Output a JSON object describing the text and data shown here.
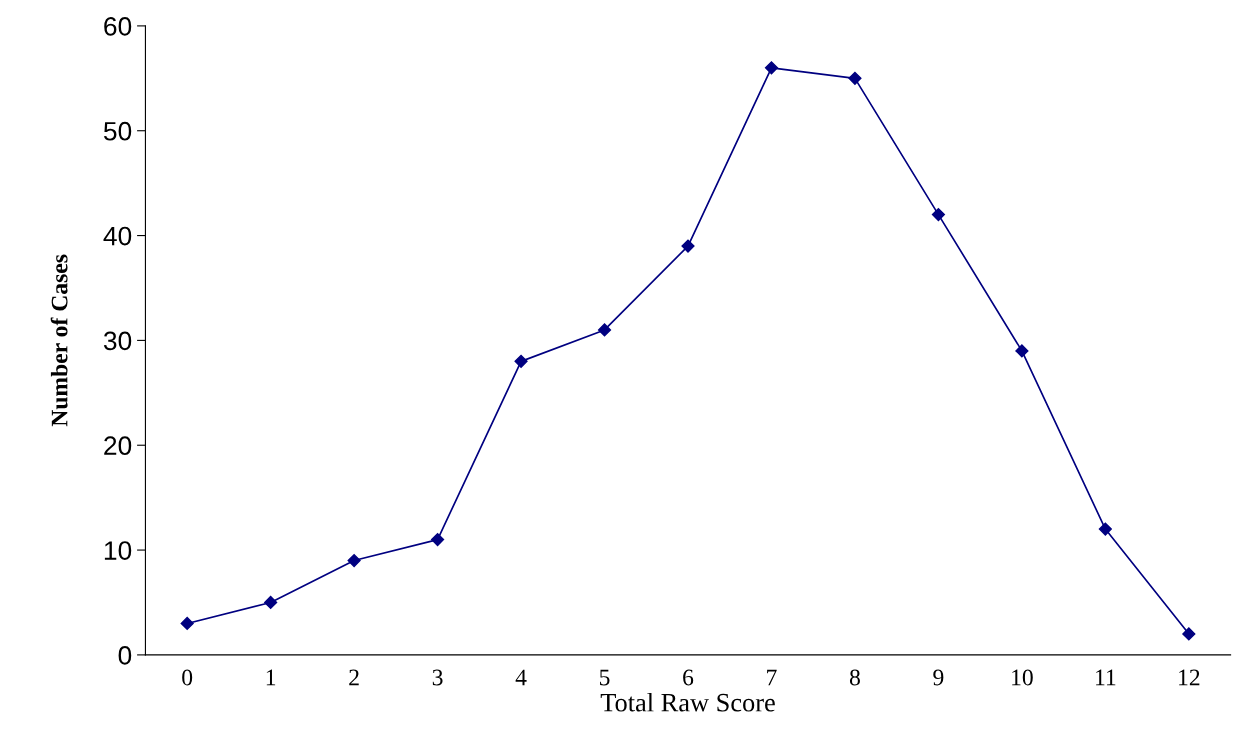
{
  "chart_data": {
    "type": "line",
    "xlabel": "Total Raw Score",
    "ylabel": "Number of Cases",
    "categories": [
      "0",
      "1",
      "2",
      "3",
      "4",
      "5",
      "6",
      "7",
      "8",
      "9",
      "10",
      "11",
      "12"
    ],
    "series": [
      {
        "color": "#000080",
        "values": [
          3,
          5,
          9,
          11,
          28,
          31,
          39,
          56,
          55,
          42,
          29,
          12,
          2
        ]
      }
    ],
    "ylim": [
      0,
      60
    ],
    "yticks": [
      0,
      10,
      20,
      30,
      40,
      50,
      60
    ],
    "marker": "diamond",
    "line_style": "solid",
    "grid": false,
    "legend": false
  }
}
